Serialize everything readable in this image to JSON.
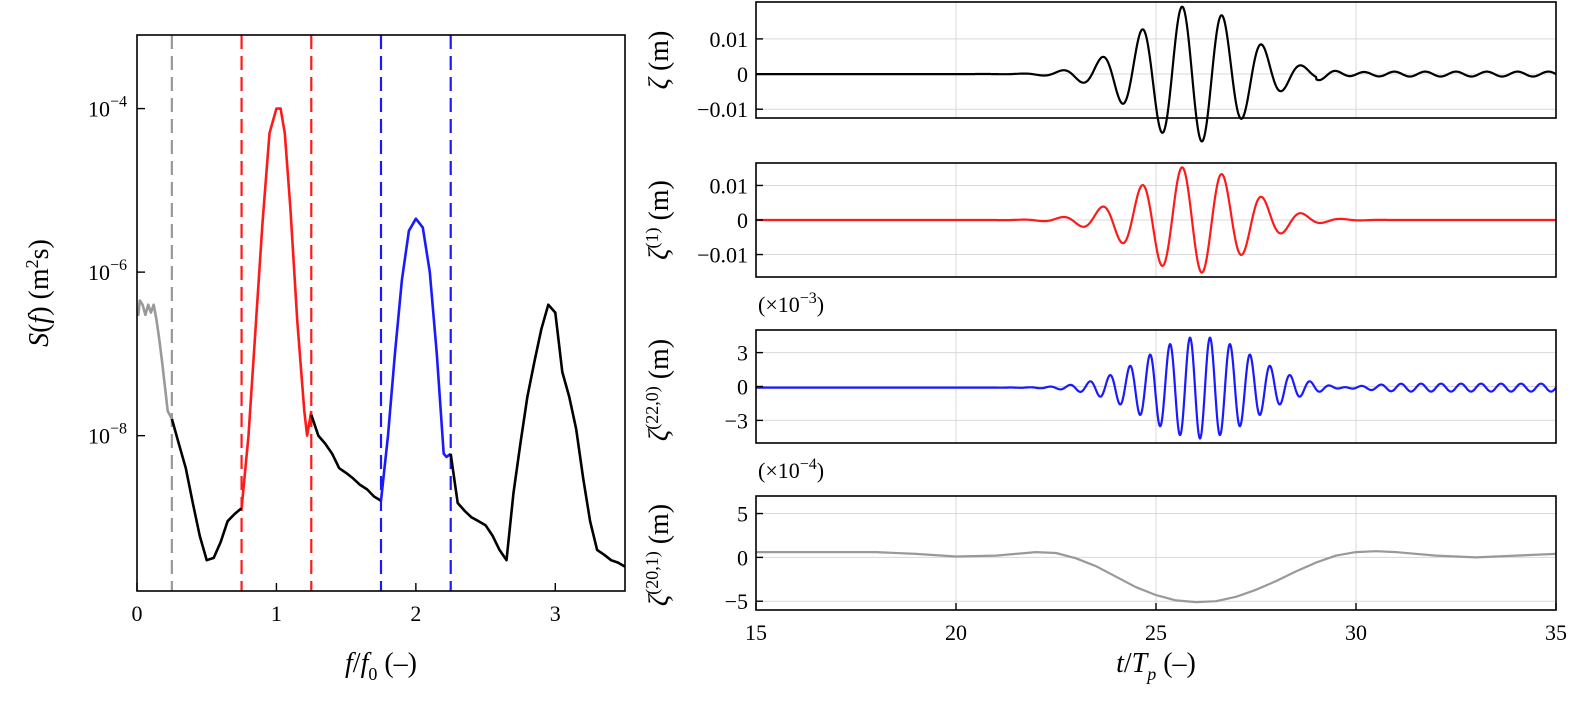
{
  "chart_data": [
    {
      "type": "line",
      "id": "spectrum",
      "xlabel": "f/f0 (–)",
      "ylabel": "S(f) (m²s)",
      "xlim": [
        0,
        3.5
      ],
      "ylim_log10": [
        -9.9,
        -3.1
      ],
      "y_scale": "log",
      "grid": false,
      "x_ticks": [
        0,
        1,
        2,
        3
      ],
      "y_ticks": [
        {
          "value": 0.0001,
          "base": "10",
          "exp": "−4"
        },
        {
          "value": 1e-06,
          "base": "10",
          "exp": "−6"
        },
        {
          "value": 1e-08,
          "base": "10",
          "exp": "−8"
        }
      ],
      "vlines": [
        {
          "x": 0.25,
          "color": "#999999"
        },
        {
          "x": 0.75,
          "color": "#ff1a1a"
        },
        {
          "x": 1.25,
          "color": "#ff1a1a"
        },
        {
          "x": 1.75,
          "color": "#1a1aff"
        },
        {
          "x": 2.25,
          "color": "#1a1aff"
        }
      ],
      "series": [
        {
          "color": "#999999",
          "x": [
            0.0,
            0.01,
            0.02,
            0.04,
            0.06,
            0.08,
            0.1,
            0.12,
            0.14,
            0.16,
            0.18,
            0.2,
            0.22,
            0.25
          ],
          "y": [
            3e-07,
            3e-07,
            4.5e-07,
            4e-07,
            3e-07,
            4e-07,
            3.2e-07,
            4e-07,
            2.6e-07,
            1.5e-07,
            8e-08,
            4e-08,
            2e-08,
            1.6e-08
          ]
        },
        {
          "color": "#000000",
          "x": [
            0.25,
            0.3,
            0.35,
            0.4,
            0.45,
            0.5,
            0.55,
            0.6,
            0.65,
            0.7,
            0.75
          ],
          "y": [
            1.6e-08,
            8e-09,
            4e-09,
            1.5e-09,
            6e-10,
            3e-10,
            3.2e-10,
            5e-10,
            9e-10,
            1.1e-09,
            1.3e-09
          ]
        },
        {
          "color": "#ff1a1a",
          "x": [
            0.75,
            0.8,
            0.85,
            0.9,
            0.95,
            1.0,
            1.03,
            1.06,
            1.1,
            1.15,
            1.2,
            1.22,
            1.25
          ],
          "y": [
            1.3e-09,
            1e-08,
            2e-07,
            4e-06,
            5e-05,
            0.0001,
            0.0001,
            5e-05,
            6e-06,
            2.5e-07,
            2e-08,
            1e-08,
            2e-08
          ]
        },
        {
          "color": "#000000",
          "x": [
            1.25,
            1.3,
            1.35,
            1.4,
            1.45,
            1.5,
            1.55,
            1.6,
            1.65,
            1.7,
            1.75
          ],
          "y": [
            1.8e-08,
            1e-08,
            8e-09,
            6e-09,
            4e-09,
            3.5e-09,
            3e-09,
            2.5e-09,
            2.2e-09,
            1.8e-09,
            1.6e-09
          ]
        },
        {
          "color": "#1a1aff",
          "x": [
            1.75,
            1.8,
            1.85,
            1.9,
            1.95,
            2.0,
            2.05,
            2.1,
            2.15,
            2.2,
            2.22,
            2.25
          ],
          "y": [
            1.6e-09,
            1e-08,
            1e-07,
            8e-07,
            3.2e-06,
            4.5e-06,
            3.5e-06,
            1e-06,
            1e-07,
            6e-09,
            5.5e-09,
            6e-09
          ]
        },
        {
          "color": "#000000",
          "x": [
            2.25,
            2.3,
            2.35,
            2.4,
            2.45,
            2.5,
            2.55,
            2.6,
            2.65,
            2.7,
            2.75,
            2.8,
            2.85,
            2.9,
            2.95,
            3.0,
            3.05,
            3.1,
            3.15,
            3.2,
            3.25,
            3.3,
            3.35,
            3.4,
            3.45,
            3.5
          ],
          "y": [
            6e-09,
            1.5e-09,
            1.2e-09,
            1e-09,
            9e-10,
            8e-10,
            6e-10,
            4e-10,
            3e-10,
            2e-09,
            8e-09,
            3e-08,
            8e-08,
            2e-07,
            4e-07,
            3.2e-07,
            6e-08,
            3e-08,
            1.2e-08,
            3e-09,
            9e-10,
            4e-10,
            3.5e-10,
            3e-10,
            2.8e-10,
            2.5e-10
          ]
        }
      ]
    },
    {
      "type": "line",
      "id": "total",
      "ylabel": "ζ (m)",
      "xlim": [
        15,
        35
      ],
      "ylim": [
        -0.0125,
        0.0205
      ],
      "y_ticks": [
        {
          "value": 0.01,
          "label": "0.01"
        },
        {
          "value": 0,
          "label": "0"
        },
        {
          "value": -0.01,
          "label": "−0.01"
        }
      ],
      "grid": true,
      "series": [
        {
          "color": "#000000",
          "amplitude_envelope_peak": 0.0195,
          "center": 25.9,
          "period": 1.0,
          "offset": 0.0
        }
      ]
    },
    {
      "type": "line",
      "id": "linear",
      "ylabel": "ζ(1) (m)",
      "xlim": [
        15,
        35
      ],
      "ylim": [
        -0.0165,
        0.0165
      ],
      "y_ticks": [
        {
          "value": 0.01,
          "label": "0.01"
        },
        {
          "value": 0,
          "label": "0"
        },
        {
          "value": -0.01,
          "label": "−0.01"
        }
      ],
      "grid": true,
      "series": [
        {
          "color": "#ff1a1a",
          "amplitude_envelope_peak": 0.0155,
          "center": 25.9,
          "period": 1.0,
          "offset": 0.0
        }
      ]
    },
    {
      "type": "line",
      "id": "second_sum",
      "multiplier": "(×10⁻³)",
      "ylabel": "ζ(22,0) (m)",
      "xlim": [
        15,
        35
      ],
      "ylim": [
        -5,
        5
      ],
      "y_ticks": [
        {
          "value": 3,
          "label": "3"
        },
        {
          "value": 0,
          "label": "0"
        },
        {
          "value": -3,
          "label": "−3"
        }
      ],
      "grid": true,
      "series": [
        {
          "color": "#1a1aff",
          "amplitude_envelope_peak": 4.5,
          "center": 26.1,
          "period": 0.5,
          "offset": -0.1
        }
      ]
    },
    {
      "type": "line",
      "id": "second_diff",
      "multiplier": "(×10⁻⁴)",
      "ylabel": "ζ(20,1) (m)",
      "xlabel": "t/Tp (–)",
      "xlim": [
        15,
        35
      ],
      "ylim": [
        -6,
        7
      ],
      "x_ticks": [
        15,
        20,
        25,
        30,
        35
      ],
      "y_ticks": [
        {
          "value": 5,
          "label": "5"
        },
        {
          "value": 0,
          "label": "0"
        },
        {
          "value": -5,
          "label": "−5"
        }
      ],
      "grid": true,
      "series": [
        {
          "color": "#999999",
          "x": [
            15,
            16,
            17,
            18,
            19,
            20,
            21,
            22,
            22.5,
            23,
            23.5,
            24,
            24.5,
            25,
            25.5,
            26,
            26.5,
            27,
            27.5,
            28,
            28.5,
            29,
            29.5,
            30,
            30.5,
            31,
            32,
            33,
            34,
            35
          ],
          "y": [
            0.6,
            0.6,
            0.6,
            0.6,
            0.4,
            0.1,
            0.2,
            0.6,
            0.5,
            -0.1,
            -1.0,
            -2.2,
            -3.4,
            -4.3,
            -4.9,
            -5.1,
            -5.0,
            -4.5,
            -3.7,
            -2.7,
            -1.6,
            -0.6,
            0.2,
            0.6,
            0.7,
            0.6,
            0.2,
            0.0,
            0.2,
            0.4
          ]
        }
      ]
    }
  ]
}
